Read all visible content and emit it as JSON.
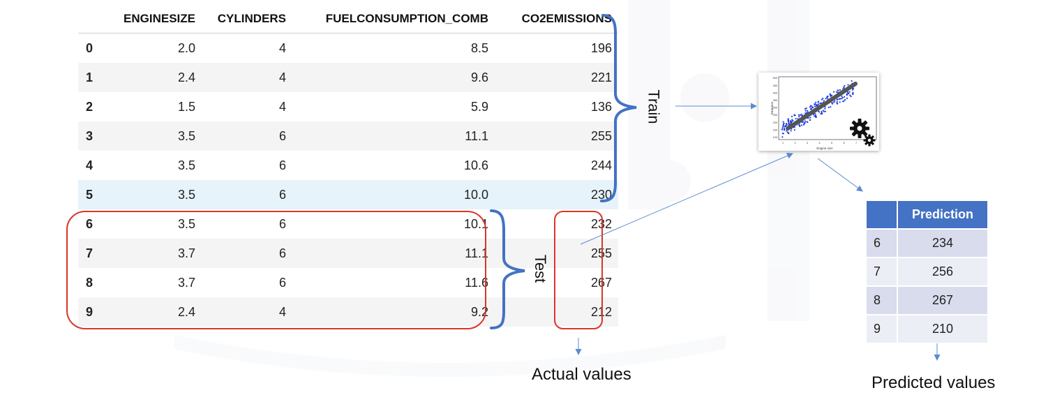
{
  "table": {
    "columns": [
      "",
      "ENGINESIZE",
      "CYLINDERS",
      "FUELCONSUMPTION_COMB",
      "CO2EMISSIONS"
    ],
    "rows": [
      [
        "0",
        "2.0",
        "4",
        "8.5",
        "196"
      ],
      [
        "1",
        "2.4",
        "4",
        "9.6",
        "221"
      ],
      [
        "2",
        "1.5",
        "4",
        "5.9",
        "136"
      ],
      [
        "3",
        "3.5",
        "6",
        "11.1",
        "255"
      ],
      [
        "4",
        "3.5",
        "6",
        "10.6",
        "244"
      ],
      [
        "5",
        "3.5",
        "6",
        "10.0",
        "230"
      ],
      [
        "6",
        "3.5",
        "6",
        "10.1",
        "232"
      ],
      [
        "7",
        "3.7",
        "6",
        "11.1",
        "255"
      ],
      [
        "8",
        "3.7",
        "6",
        "11.6",
        "267"
      ],
      [
        "9",
        "2.4",
        "4",
        "9.2",
        "212"
      ]
    ]
  },
  "labels": {
    "train": "Train",
    "test": "Test",
    "actual": "Actual values",
    "predicted": "Predicted values"
  },
  "prediction": {
    "header": "Prediction",
    "rows": [
      [
        "6",
        "234"
      ],
      [
        "7",
        "256"
      ],
      [
        "8",
        "267"
      ],
      [
        "9",
        "210"
      ]
    ]
  },
  "plot": {
    "xlabel": "Engine size",
    "ylabel": "Emission",
    "x_ticks": [
      "1",
      "2",
      "3",
      "4",
      "5",
      "6",
      "7",
      "8"
    ],
    "y_ticks": [
      "100",
      "150",
      "200",
      "250",
      "300",
      "350",
      "400",
      "450",
      "500"
    ]
  },
  "colors": {
    "bracket": "#4472c4",
    "test_box": "#d9352a",
    "arrow": "#5b8bd0",
    "header_fill": "#4472c4",
    "scatter": "#1f3fe0",
    "fit_line": "#555555"
  }
}
